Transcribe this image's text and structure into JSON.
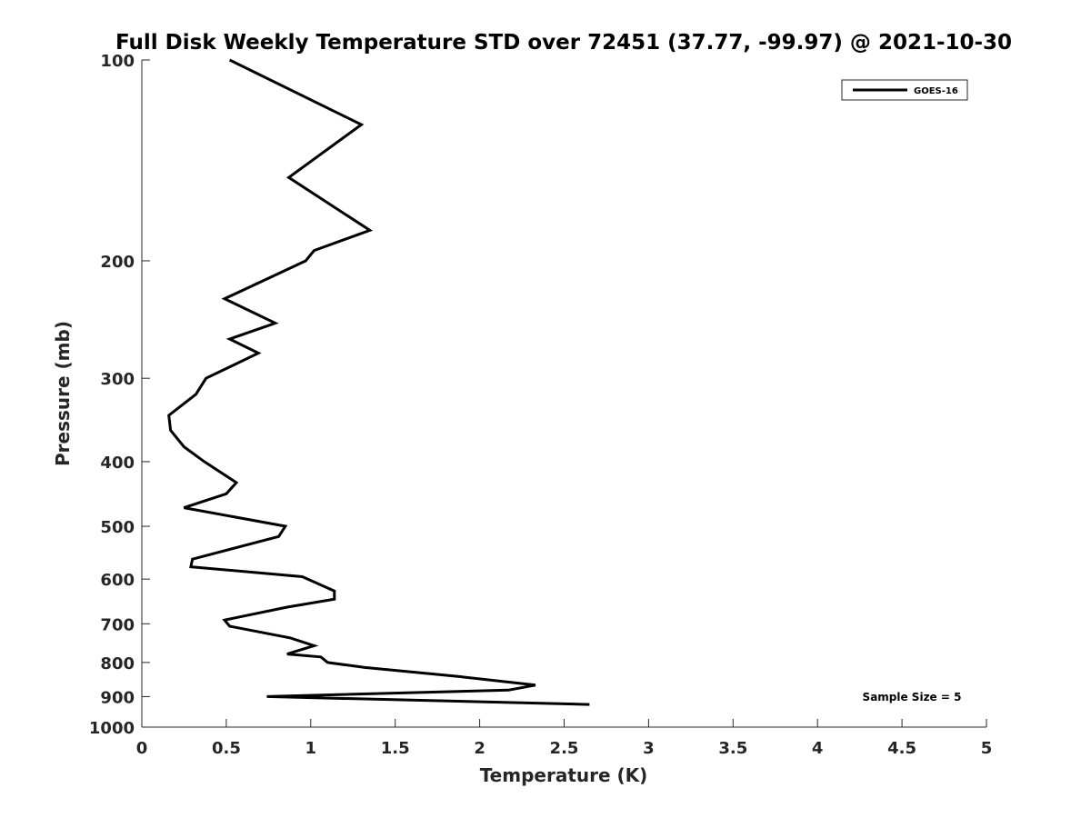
{
  "chart_data": {
    "type": "line",
    "title": "Full Disk Weekly Temperature STD over 72451 (37.77, -99.97) @ 2021-10-30",
    "xlabel": "Temperature (K)",
    "ylabel": "Pressure (mb)",
    "xlim": [
      0,
      5
    ],
    "ylim": [
      1000,
      100
    ],
    "y_scale": "log",
    "y_inverted": true,
    "x_ticks": [
      "0",
      "0.5",
      "1",
      "1.5",
      "2",
      "2.5",
      "3",
      "3.5",
      "4",
      "4.5",
      "5"
    ],
    "y_ticks": [
      "100",
      "200",
      "300",
      "400",
      "500",
      "600",
      "700",
      "800",
      "900",
      "1000"
    ],
    "grid": false,
    "legend_position": "top-right",
    "annotation": "Sample Size = 5",
    "series": [
      {
        "name": "GOES-16",
        "color": "#000000",
        "points": [
          [
            0.52,
            100
          ],
          [
            1.3,
            125
          ],
          [
            0.87,
            150
          ],
          [
            1.35,
            180
          ],
          [
            1.02,
            193
          ],
          [
            0.97,
            200
          ],
          [
            0.49,
            228
          ],
          [
            0.79,
            248
          ],
          [
            0.52,
            262
          ],
          [
            0.69,
            275
          ],
          [
            0.38,
            300
          ],
          [
            0.32,
            317
          ],
          [
            0.16,
            341
          ],
          [
            0.17,
            359
          ],
          [
            0.25,
            380
          ],
          [
            0.37,
            400
          ],
          [
            0.56,
            430
          ],
          [
            0.5,
            447
          ],
          [
            0.25,
            469
          ],
          [
            0.85,
            500
          ],
          [
            0.81,
            518
          ],
          [
            0.3,
            560
          ],
          [
            0.29,
            575
          ],
          [
            0.95,
            595
          ],
          [
            1.14,
            625
          ],
          [
            1.14,
            643
          ],
          [
            0.86,
            661
          ],
          [
            0.49,
            691
          ],
          [
            0.52,
            706
          ],
          [
            0.88,
            735
          ],
          [
            1.02,
            755
          ],
          [
            0.86,
            777
          ],
          [
            1.06,
            785
          ],
          [
            1.1,
            800
          ],
          [
            1.32,
            814
          ],
          [
            1.88,
            840
          ],
          [
            2.33,
            865
          ],
          [
            2.17,
            880
          ],
          [
            0.74,
            900
          ],
          [
            2.65,
            925
          ]
        ]
      }
    ]
  }
}
